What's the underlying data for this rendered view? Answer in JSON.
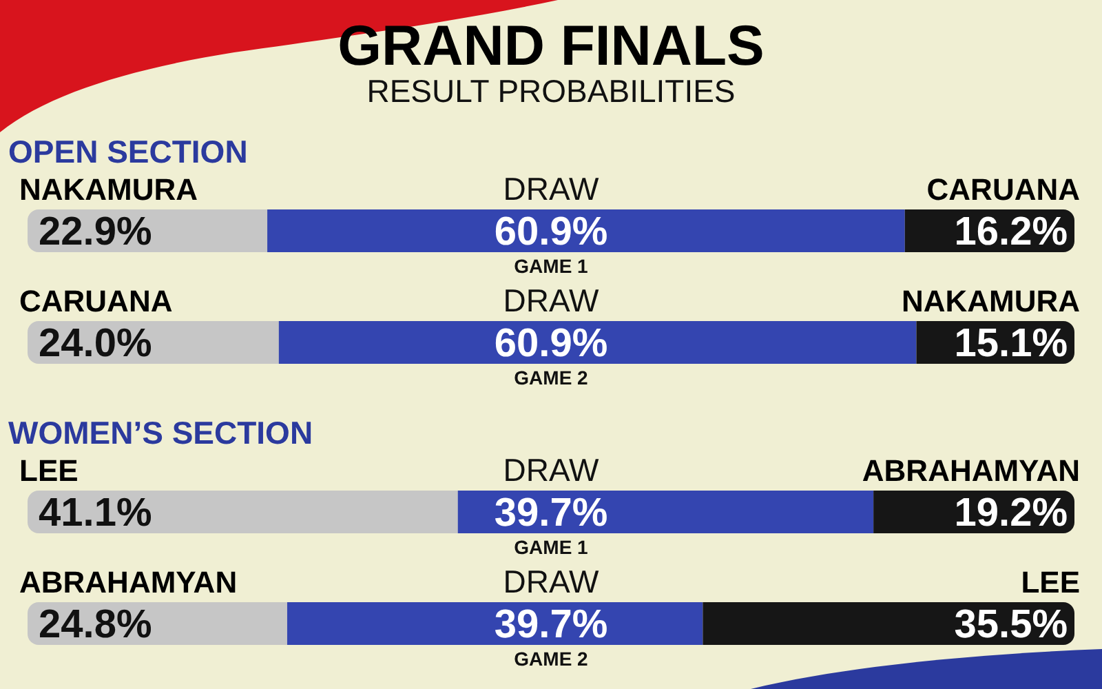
{
  "chart_data": [
    {
      "type": "other",
      "title": "GRAND FINALS",
      "subtitle": "RESULT PROBABILITIES"
    },
    {
      "type": "bar",
      "orientation": "horizontal",
      "stacked": true,
      "title": "OPEN SECTION",
      "categories": [
        "GAME 1",
        "GAME 2"
      ],
      "series": [
        {
          "color": "#c6c6c6",
          "values": [
            22.9,
            24.0
          ],
          "value_labels": [
            "22.9%",
            "24.0%"
          ]
        },
        {
          "name": "DRAW",
          "color": "#3445b0",
          "values": [
            60.9,
            60.9
          ],
          "value_labels": [
            "60.9%",
            "60.9%"
          ]
        },
        {
          "color": "#161616",
          "values": [
            16.2,
            15.1
          ],
          "value_labels": [
            "16.2%",
            "15.1%"
          ]
        }
      ],
      "annotations": [
        "NAKAMURA",
        "CARUANA",
        "CARUANA",
        "NAKAMURA"
      ]
    },
    {
      "type": "bar",
      "orientation": "horizontal",
      "stacked": true,
      "title": "WOMEN’S SECTION",
      "categories": [
        "GAME 1",
        "GAME 2"
      ],
      "series": [
        {
          "color": "#c6c6c6",
          "values": [
            41.1,
            24.8
          ],
          "value_labels": [
            "41.1%",
            "24.8%"
          ]
        },
        {
          "name": "DRAW",
          "color": "#3445b0",
          "values": [
            39.7,
            39.7
          ],
          "value_labels": [
            "39.7%",
            "39.7%"
          ]
        },
        {
          "color": "#161616",
          "values": [
            19.2,
            35.5
          ],
          "value_labels": [
            "19.2%",
            "35.5%"
          ]
        }
      ],
      "annotations": [
        "LEE",
        "ABRAHAMYAN",
        "ABRAHAMYAN",
        "LEE"
      ]
    }
  ]
}
